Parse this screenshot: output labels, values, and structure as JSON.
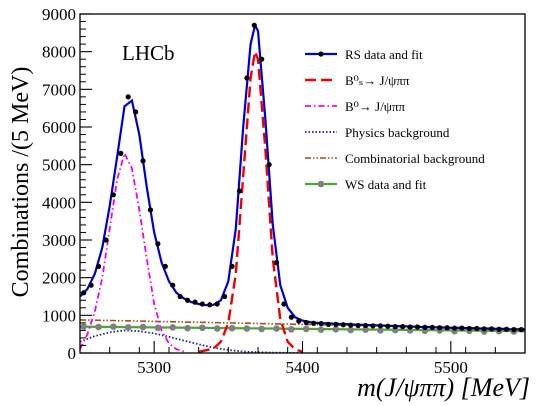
{
  "chart_data": {
    "type": "line",
    "experiment_label": "LHCb",
    "xlabel": "m(J/ψππ) [MeV]",
    "ylabel": "Combinations /(5 MeV)",
    "xlim": [
      5250,
      5550
    ],
    "ylim": [
      0,
      9000
    ],
    "x_ticks": [
      5300,
      5400,
      5500
    ],
    "y_ticks": [
      0,
      1000,
      2000,
      3000,
      4000,
      5000,
      6000,
      7000,
      8000,
      9000
    ],
    "legend_position": "top-right",
    "legend": [
      {
        "key": "rs",
        "label": "RS data and fit",
        "color": "#0000cc",
        "style": "solid-marker"
      },
      {
        "key": "bs",
        "label": "B⁰ₛ→ J/ψππ",
        "color": "#ee0000",
        "style": "dashed"
      },
      {
        "key": "bd",
        "label": "B⁰→ J/ψππ",
        "color": "#ee00ee",
        "style": "dashdot"
      },
      {
        "key": "phys",
        "label": "Physics background",
        "color": "#1a1a99",
        "style": "dotted"
      },
      {
        "key": "comb",
        "label": "Combinatorial background",
        "color": "#a0501e",
        "style": "dashdotdot"
      },
      {
        "key": "ws",
        "label": "WS data and fit",
        "color": "#4aa832",
        "style": "solid-marker-grey"
      }
    ],
    "series": [
      {
        "name": "RS data",
        "type": "scatter",
        "x": [
          5252.5,
          5257.5,
          5262.5,
          5267.5,
          5272.5,
          5277.5,
          5282.5,
          5287.5,
          5292.5,
          5297.5,
          5302.5,
          5307.5,
          5312.5,
          5317.5,
          5322.5,
          5327.5,
          5332.5,
          5337.5,
          5342.5,
          5347.5,
          5352.5,
          5357.5,
          5362.5,
          5367.5,
          5372.5,
          5377.5,
          5382.5,
          5387.5,
          5392.5,
          5397.5,
          5402.5,
          5407.5,
          5412.5,
          5417.5,
          5422.5,
          5427.5,
          5432.5,
          5437.5,
          5442.5,
          5447.5,
          5452.5,
          5457.5,
          5462.5,
          5467.5,
          5472.5,
          5477.5,
          5482.5,
          5487.5,
          5492.5,
          5497.5,
          5502.5,
          5507.5,
          5512.5,
          5517.5,
          5522.5,
          5527.5,
          5532.5,
          5537.5,
          5542.5,
          5547.5
        ],
        "y": [
          1600,
          1800,
          2300,
          3000,
          4200,
          5300,
          6800,
          6400,
          5100,
          3800,
          2900,
          2300,
          1800,
          1500,
          1400,
          1350,
          1300,
          1280,
          1300,
          1500,
          2300,
          4300,
          7300,
          8700,
          7800,
          5000,
          2400,
          1300,
          950,
          850,
          810,
          790,
          780,
          760,
          760,
          750,
          740,
          730,
          730,
          720,
          720,
          710,
          700,
          700,
          690,
          690,
          680,
          680,
          670,
          670,
          660,
          660,
          650,
          650,
          640,
          640,
          630,
          630,
          620,
          620
        ]
      },
      {
        "name": "RS fit",
        "type": "line",
        "x": [
          5250,
          5255,
          5260,
          5265,
          5270,
          5275,
          5280,
          5285,
          5290,
          5295,
          5300,
          5305,
          5310,
          5315,
          5320,
          5325,
          5330,
          5335,
          5340,
          5345,
          5350,
          5355,
          5360,
          5365,
          5368,
          5370,
          5375,
          5380,
          5385,
          5390,
          5395,
          5400,
          5405,
          5410,
          5420,
          5430,
          5440,
          5450,
          5460,
          5470,
          5480,
          5490,
          5500,
          5510,
          5520,
          5530,
          5540,
          5550
        ],
        "y": [
          1500,
          1700,
          2100,
          2800,
          3900,
          5200,
          6550,
          6700,
          5800,
          4400,
          3200,
          2400,
          1900,
          1600,
          1450,
          1350,
          1300,
          1270,
          1280,
          1400,
          1900,
          3300,
          6000,
          8200,
          8700,
          8550,
          6200,
          3400,
          1800,
          1200,
          950,
          860,
          820,
          800,
          780,
          765,
          750,
          735,
          720,
          705,
          690,
          680,
          670,
          660,
          650,
          640,
          630,
          620
        ]
      },
      {
        "name": "Bs",
        "type": "line",
        "x": [
          5330,
          5340,
          5345,
          5350,
          5355,
          5360,
          5365,
          5368,
          5370,
          5375,
          5380,
          5385,
          5390,
          5395,
          5400
        ],
        "y": [
          30,
          120,
          300,
          800,
          2100,
          4700,
          7300,
          8000,
          7800,
          5400,
          2500,
          900,
          300,
          100,
          30
        ]
      },
      {
        "name": "Bd",
        "type": "line",
        "x": [
          5250,
          5255,
          5260,
          5265,
          5270,
          5275,
          5280,
          5285,
          5290,
          5295,
          5300,
          5305,
          5310,
          5315,
          5320
        ],
        "y": [
          100,
          500,
          1100,
          2000,
          3300,
          4600,
          5300,
          4900,
          3800,
          2500,
          1300,
          600,
          250,
          100,
          40
        ]
      },
      {
        "name": "Physics background",
        "type": "line",
        "x": [
          5250,
          5260,
          5270,
          5280,
          5290,
          5300,
          5310,
          5320,
          5330,
          5340,
          5350,
          5360,
          5370,
          5380,
          5390,
          5400
        ],
        "y": [
          300,
          450,
          550,
          600,
          580,
          520,
          430,
          330,
          230,
          140,
          80,
          40,
          20,
          10,
          5,
          0
        ]
      },
      {
        "name": "Combinatorial background",
        "type": "line",
        "x": [
          5250,
          5300,
          5350,
          5400,
          5450,
          5500,
          5550
        ],
        "y": [
          880,
          840,
          800,
          760,
          720,
          680,
          640
        ]
      },
      {
        "name": "WS data",
        "type": "scatter",
        "x": [
          5252.5,
          5262.5,
          5272.5,
          5282.5,
          5292.5,
          5302.5,
          5312.5,
          5322.5,
          5332.5,
          5342.5,
          5352.5,
          5362.5,
          5372.5,
          5382.5,
          5392.5,
          5402.5,
          5412.5,
          5422.5,
          5432.5,
          5442.5,
          5452.5,
          5462.5,
          5472.5,
          5482.5,
          5492.5,
          5502.5,
          5512.5,
          5522.5,
          5532.5,
          5542.5
        ],
        "y": [
          700,
          690,
          700,
          680,
          690,
          670,
          680,
          660,
          670,
          650,
          660,
          650,
          640,
          650,
          630,
          640,
          620,
          630,
          610,
          620,
          600,
          610,
          600,
          590,
          600,
          580,
          590,
          570,
          580,
          570
        ]
      },
      {
        "name": "WS fit",
        "type": "line",
        "x": [
          5250,
          5300,
          5350,
          5400,
          5450,
          5500,
          5550
        ],
        "y": [
          700,
          680,
          660,
          640,
          620,
          600,
          580
        ]
      }
    ]
  }
}
